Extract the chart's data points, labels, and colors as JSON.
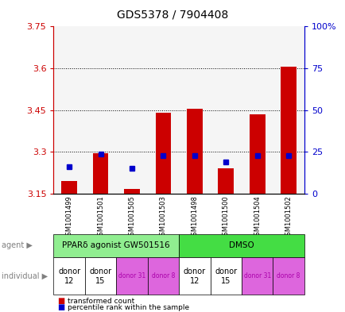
{
  "title": "GDS5378 / 7904408",
  "samples": [
    "GSM1001499",
    "GSM1001501",
    "GSM1001505",
    "GSM1001503",
    "GSM1001498",
    "GSM1001500",
    "GSM1001504",
    "GSM1001502"
  ],
  "red_values": [
    3.195,
    3.295,
    3.165,
    3.44,
    3.455,
    3.24,
    3.435,
    3.605
  ],
  "blue_values": [
    3.245,
    3.293,
    3.24,
    3.285,
    3.285,
    3.262,
    3.285,
    3.285
  ],
  "ymin": 3.15,
  "ymax": 3.75,
  "y_ticks": [
    3.15,
    3.3,
    3.45,
    3.6,
    3.75
  ],
  "y_tick_labels": [
    "3.15",
    "3.3",
    "3.45",
    "3.6",
    "3.75"
  ],
  "right_y_ticks_pct": [
    0,
    25,
    50,
    75,
    100
  ],
  "right_y_tick_labels": [
    "0",
    "25",
    "50",
    "75",
    "100%"
  ],
  "agent_groups": [
    {
      "label": "PPARδ agonist GW501516",
      "start": 0,
      "end": 4,
      "color": "#90ee90"
    },
    {
      "label": "DMSO",
      "start": 4,
      "end": 8,
      "color": "#44dd44"
    }
  ],
  "individual_labels": [
    "donor\n12",
    "donor\n15",
    "donor 31",
    "donor 8",
    "donor\n12",
    "donor\n15",
    "donor 31",
    "donor 8"
  ],
  "individual_colors": [
    "white",
    "white",
    "#dd66dd",
    "#dd66dd",
    "white",
    "white",
    "#dd66dd",
    "#dd66dd"
  ],
  "individual_text_colors": [
    "black",
    "black",
    "#aa00aa",
    "#aa00aa",
    "black",
    "black",
    "#aa00aa",
    "#aa00aa"
  ],
  "individual_small": [
    false,
    false,
    true,
    true,
    false,
    false,
    true,
    true
  ],
  "bar_base": 3.15,
  "bar_width": 0.5,
  "red_color": "#cc0000",
  "blue_color": "#0000cc",
  "tick_color_left": "#cc0000",
  "tick_color_right": "#0000cc",
  "plot_bg": "#f5f5f5",
  "xlim": [
    -0.5,
    7.5
  ]
}
